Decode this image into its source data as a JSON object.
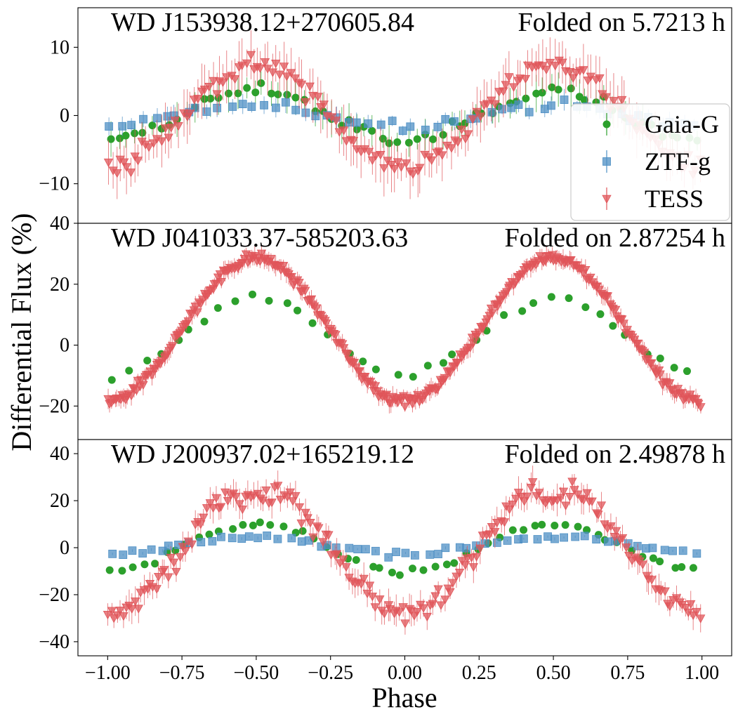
{
  "figure": {
    "ylabel": "Differential Flux (%)",
    "xlabel": "Phase"
  },
  "chart_data": [
    {
      "type": "scatter",
      "title": "WD J153938.12+270605.84",
      "subtitle": "Folded on 5.7213 h",
      "xlabel": "Phase",
      "ylabel": "Differential Flux (%)",
      "xlim": [
        -1.1,
        1.1
      ],
      "ylim": [
        -15.8,
        15.8
      ],
      "yticks": [
        -10,
        0,
        10
      ],
      "ytick_labels": [
        "−10",
        "0",
        "10"
      ],
      "legend": {
        "position": "right",
        "entries": [
          "Gaia-G",
          "ZTF-g",
          "TESS"
        ]
      },
      "series": [
        {
          "name": "Gaia-G",
          "marker": "circle",
          "color": "#2ca02c",
          "amplitude": 3.8,
          "scatter": 1.3,
          "err": 2.0,
          "n": 70
        },
        {
          "name": "ZTF-g",
          "marker": "square",
          "color": "#4d8fc4",
          "amplitude": 1.5,
          "scatter": 1.0,
          "err": 1.2,
          "n": 55
        },
        {
          "name": "TESS",
          "marker": "triangle-down",
          "color": "#e0555a",
          "amplitude": 7.5,
          "scatter": 2.0,
          "err": 3.0,
          "n": 160
        }
      ]
    },
    {
      "type": "scatter",
      "title": "WD J041033.37-585203.63",
      "subtitle": "Folded on 2.87254 h",
      "xlabel": "Phase",
      "ylabel": "Differential Flux (%)",
      "xlim": [
        -1.1,
        1.1
      ],
      "ylim": [
        -31.0,
        40.0
      ],
      "yticks": [
        -20,
        0,
        20,
        40
      ],
      "ytick_labels": [
        "−20",
        "0",
        "20",
        "40"
      ],
      "series": [
        {
          "name": "Gaia-G",
          "marker": "circle",
          "color": "#2ca02c",
          "amplitude": 13.0,
          "offset": 2.5,
          "scatter": 2.0,
          "err": 0.5,
          "n": 38
        },
        {
          "name": "TESS",
          "marker": "triangle-down",
          "color": "#e0555a",
          "amplitude": 23.5,
          "offset": 5.0,
          "scatter": 2.0,
          "err": 2.5,
          "n": 340
        }
      ]
    },
    {
      "type": "scatter",
      "title": "WD J200937.02+165219.12",
      "subtitle": "Folded on 2.49878 h",
      "xlabel": "Phase",
      "ylabel": "Differential Flux (%)",
      "xlim": [
        -1.1,
        1.1
      ],
      "ylim": [
        -46.0,
        46.0
      ],
      "yticks": [
        -40,
        -20,
        0,
        20,
        40
      ],
      "ytick_labels": [
        "−40",
        "−20",
        "0",
        "20",
        "40"
      ],
      "xticks": [
        -1.0,
        -0.75,
        -0.5,
        -0.25,
        0.0,
        0.25,
        0.5,
        0.75,
        1.0
      ],
      "xtick_labels": [
        "−1.00",
        "−0.75",
        "−0.50",
        "−0.25",
        "0.00",
        "0.25",
        "0.50",
        "0.75",
        "1.00"
      ],
      "series": [
        {
          "name": "Gaia-G",
          "marker": "circle",
          "color": "#2ca02c",
          "amplitude": 10.0,
          "offset": 0.0,
          "scatter": 2.0,
          "err": 0.5,
          "n": 55
        },
        {
          "name": "ZTF-g",
          "marker": "square",
          "color": "#4d8fc4",
          "amplitude": 3.5,
          "offset": 1.0,
          "scatter": 1.5,
          "err": 0.5,
          "n": 60
        },
        {
          "name": "TESS",
          "marker": "triangle-down",
          "color": "#e0555a",
          "amplitude": 28.0,
          "offset": 0.0,
          "scatter": 5.0,
          "err": 5.0,
          "n": 200
        }
      ]
    }
  ]
}
